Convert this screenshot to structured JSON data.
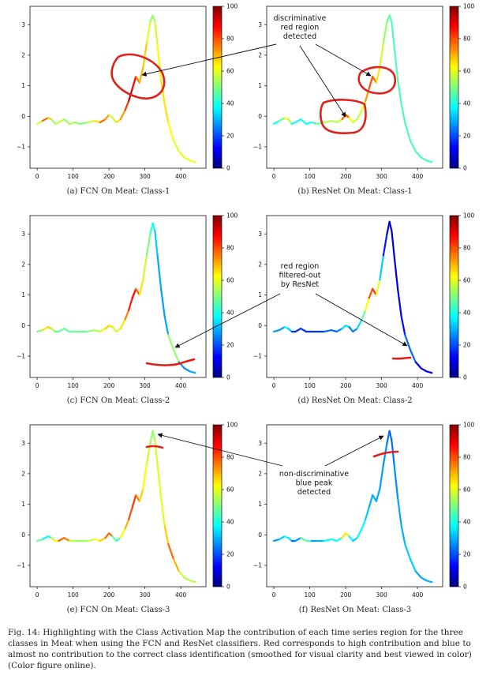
{
  "figure_caption": "Fig. 14: Highlighting with the Class Activation Map the contribution of each time series region for the three classes in Meat when using the FCN and ResNet classifiers. Red corresponds to high contribution and blue to almost no contribution to the correct class identification (smoothed for visual clarity and best viewed in color) (Color figure online).",
  "annotations": {
    "discriminative": [
      "discriminative",
      "red region",
      "detected"
    ],
    "filtered": [
      "red region",
      "filtered-out",
      "by ResNet"
    ],
    "nondiscriminative": [
      "non-discriminative",
      "blue peak",
      "detected"
    ]
  },
  "colormap": {
    "name": "jet",
    "stops": [
      "#00007f",
      "#0000ff",
      "#007fff",
      "#00ffff",
      "#7fff7f",
      "#ffff00",
      "#ff7f00",
      "#ff0000",
      "#7f0000"
    ]
  },
  "colorbar_ticks": [
    0,
    20,
    40,
    60,
    80,
    100
  ],
  "x_ticks": [
    0,
    100,
    200,
    300,
    400
  ],
  "y_ticks": [
    3,
    2,
    1,
    0,
    -1
  ],
  "chart_data": [
    {
      "type": "line",
      "subcaption": "(a) FCN On Meat: Class-1",
      "xlim": [
        -20,
        470
      ],
      "ylim": [
        -1.7,
        3.6
      ],
      "series": [
        {
          "x": [
            0,
            15,
            30,
            40,
            50,
            60,
            75,
            90,
            105,
            120,
            140,
            160,
            175,
            190,
            200,
            210,
            220,
            232,
            245,
            255,
            265,
            275,
            285,
            295,
            305,
            315,
            322,
            328,
            335,
            345,
            355,
            365,
            380,
            395,
            410,
            425,
            440
          ],
          "y": [
            -0.25,
            -0.15,
            -0.05,
            -0.1,
            -0.25,
            -0.2,
            -0.1,
            -0.25,
            -0.2,
            -0.25,
            -0.2,
            -0.15,
            -0.2,
            -0.1,
            0.05,
            -0.05,
            -0.2,
            -0.1,
            0.2,
            0.5,
            0.9,
            1.3,
            1.1,
            1.6,
            2.4,
            3.1,
            3.3,
            3.1,
            2.3,
            1.2,
            0.4,
            -0.2,
            -0.8,
            -1.15,
            -1.35,
            -1.45,
            -1.5
          ],
          "cam": [
            40,
            75,
            80,
            55,
            50,
            60,
            55,
            50,
            60,
            45,
            55,
            60,
            70,
            85,
            60,
            55,
            60,
            70,
            75,
            90,
            95,
            80,
            70,
            70,
            65,
            55,
            50,
            55,
            60,
            65,
            65,
            65,
            60,
            60,
            60,
            60,
            60
          ]
        }
      ]
    },
    {
      "type": "line",
      "subcaption": "(b) ResNet On Meat: Class-1",
      "xlim": [
        -20,
        470
      ],
      "ylim": [
        -1.7,
        3.6
      ],
      "series": [
        {
          "x": [
            0,
            15,
            30,
            40,
            50,
            60,
            75,
            90,
            105,
            120,
            140,
            160,
            175,
            190,
            200,
            210,
            220,
            232,
            245,
            255,
            265,
            275,
            285,
            295,
            305,
            315,
            322,
            328,
            335,
            345,
            355,
            365,
            380,
            395,
            410,
            425,
            440
          ],
          "y": [
            -0.25,
            -0.15,
            -0.05,
            -0.1,
            -0.25,
            -0.2,
            -0.1,
            -0.25,
            -0.2,
            -0.25,
            -0.2,
            -0.15,
            -0.2,
            -0.1,
            0.05,
            -0.05,
            -0.2,
            -0.1,
            0.2,
            0.5,
            0.9,
            1.3,
            1.1,
            1.6,
            2.4,
            3.1,
            3.3,
            3.1,
            2.3,
            1.2,
            0.4,
            -0.2,
            -0.8,
            -1.15,
            -1.35,
            -1.45,
            -1.5
          ],
          "cam": [
            35,
            40,
            55,
            70,
            40,
            35,
            45,
            35,
            40,
            45,
            50,
            60,
            50,
            65,
            90,
            70,
            55,
            60,
            55,
            70,
            75,
            85,
            70,
            60,
            55,
            50,
            45,
            45,
            45,
            45,
            45,
            45,
            45,
            45,
            45,
            45,
            45
          ]
        }
      ]
    },
    {
      "type": "line",
      "subcaption": "(c) FCN On Meat: Class-2",
      "xlim": [
        -20,
        470
      ],
      "ylim": [
        -1.7,
        3.6
      ],
      "series": [
        {
          "x": [
            0,
            15,
            30,
            40,
            50,
            60,
            75,
            90,
            105,
            120,
            140,
            160,
            175,
            190,
            200,
            210,
            220,
            232,
            245,
            255,
            265,
            275,
            285,
            295,
            305,
            315,
            322,
            328,
            335,
            345,
            355,
            365,
            380,
            395,
            410,
            425,
            440
          ],
          "y": [
            -0.2,
            -0.15,
            -0.05,
            -0.1,
            -0.2,
            -0.2,
            -0.1,
            -0.2,
            -0.2,
            -0.2,
            -0.2,
            -0.15,
            -0.2,
            -0.1,
            0.0,
            -0.05,
            -0.2,
            -0.1,
            0.2,
            0.5,
            0.9,
            1.2,
            1.0,
            1.5,
            2.3,
            3.0,
            3.35,
            3.1,
            2.3,
            1.2,
            0.3,
            -0.3,
            -0.8,
            -1.2,
            -1.4,
            -1.5,
            -1.55
          ],
          "cam": [
            45,
            55,
            75,
            60,
            50,
            45,
            50,
            45,
            50,
            45,
            50,
            55,
            55,
            65,
            70,
            60,
            55,
            60,
            70,
            80,
            90,
            85,
            70,
            60,
            55,
            45,
            40,
            35,
            30,
            28,
            28,
            30,
            75,
            30,
            25,
            28,
            30
          ]
        }
      ]
    },
    {
      "type": "line",
      "subcaption": "(d) ResNet On Meat: Class-2",
      "xlim": [
        -20,
        470
      ],
      "ylim": [
        -1.7,
        3.6
      ],
      "series": [
        {
          "x": [
            0,
            15,
            30,
            40,
            50,
            60,
            75,
            90,
            105,
            120,
            140,
            160,
            175,
            190,
            200,
            210,
            220,
            232,
            245,
            255,
            265,
            275,
            285,
            295,
            305,
            315,
            322,
            328,
            335,
            345,
            355,
            365,
            380,
            395,
            410,
            425,
            440
          ],
          "y": [
            -0.2,
            -0.15,
            -0.05,
            -0.1,
            -0.2,
            -0.2,
            -0.1,
            -0.2,
            -0.2,
            -0.2,
            -0.2,
            -0.15,
            -0.2,
            -0.1,
            0.0,
            -0.05,
            -0.2,
            -0.1,
            0.2,
            0.5,
            0.9,
            1.2,
            1.0,
            1.5,
            2.3,
            3.0,
            3.4,
            3.1,
            2.3,
            1.2,
            0.3,
            -0.3,
            -0.8,
            -1.2,
            -1.4,
            -1.5,
            -1.55
          ],
          "cam": [
            30,
            25,
            30,
            45,
            20,
            15,
            20,
            15,
            20,
            15,
            20,
            25,
            20,
            30,
            40,
            30,
            20,
            30,
            40,
            55,
            70,
            90,
            75,
            45,
            20,
            10,
            8,
            8,
            8,
            10,
            12,
            15,
            30,
            15,
            10,
            10,
            12
          ]
        }
      ]
    },
    {
      "type": "line",
      "subcaption": "(e) FCN On Meat: Class-3",
      "xlim": [
        -20,
        470
      ],
      "ylim": [
        -1.7,
        3.6
      ],
      "series": [
        {
          "x": [
            0,
            15,
            30,
            40,
            50,
            60,
            75,
            90,
            105,
            120,
            140,
            160,
            175,
            190,
            200,
            210,
            220,
            232,
            245,
            255,
            265,
            275,
            285,
            295,
            305,
            315,
            322,
            328,
            335,
            345,
            355,
            365,
            380,
            395,
            410,
            425,
            440
          ],
          "y": [
            -0.2,
            -0.15,
            -0.05,
            -0.1,
            -0.2,
            -0.2,
            -0.1,
            -0.2,
            -0.2,
            -0.2,
            -0.2,
            -0.15,
            -0.2,
            -0.1,
            0.05,
            -0.05,
            -0.2,
            -0.1,
            0.2,
            0.5,
            0.9,
            1.3,
            1.1,
            1.5,
            2.3,
            3.0,
            3.4,
            3.1,
            2.3,
            1.2,
            0.3,
            -0.3,
            -0.8,
            -1.2,
            -1.4,
            -1.5,
            -1.55
          ],
          "cam": [
            45,
            50,
            25,
            55,
            60,
            65,
            90,
            60,
            55,
            50,
            55,
            60,
            65,
            70,
            85,
            70,
            25,
            60,
            65,
            75,
            85,
            80,
            70,
            65,
            60,
            55,
            50,
            55,
            60,
            60,
            60,
            75,
            80,
            60,
            55,
            55,
            55
          ]
        }
      ]
    },
    {
      "type": "line",
      "subcaption": "(f) ResNet On Meat: Class-3",
      "xlim": [
        -20,
        470
      ],
      "ylim": [
        -1.7,
        3.6
      ],
      "series": [
        {
          "x": [
            0,
            15,
            30,
            40,
            50,
            60,
            75,
            90,
            105,
            120,
            140,
            160,
            175,
            190,
            200,
            210,
            220,
            232,
            245,
            255,
            265,
            275,
            285,
            295,
            305,
            315,
            322,
            328,
            335,
            345,
            355,
            365,
            380,
            395,
            410,
            425,
            440
          ],
          "y": [
            -0.2,
            -0.15,
            -0.05,
            -0.1,
            -0.2,
            -0.2,
            -0.1,
            -0.2,
            -0.2,
            -0.2,
            -0.2,
            -0.15,
            -0.2,
            -0.1,
            0.05,
            -0.05,
            -0.2,
            -0.1,
            0.2,
            0.5,
            0.9,
            1.3,
            1.1,
            1.5,
            2.3,
            3.0,
            3.4,
            3.1,
            2.3,
            1.2,
            0.3,
            -0.3,
            -0.8,
            -1.2,
            -1.4,
            -1.5,
            -1.55
          ],
          "cam": [
            25,
            30,
            35,
            45,
            25,
            20,
            35,
            60,
            30,
            25,
            35,
            40,
            35,
            45,
            85,
            45,
            30,
            35,
            40,
            35,
            30,
            30,
            30,
            28,
            28,
            25,
            22,
            22,
            25,
            28,
            30,
            30,
            35,
            30,
            28,
            30,
            30
          ]
        }
      ]
    }
  ]
}
